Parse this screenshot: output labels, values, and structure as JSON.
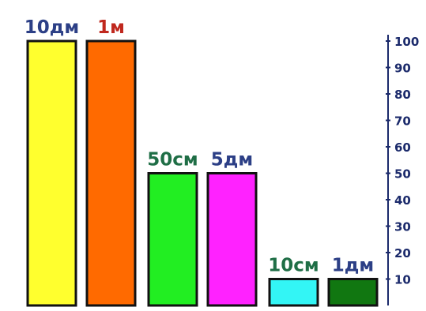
{
  "chart_data": {
    "type": "bar",
    "categories": [
      "10дм",
      "1м",
      "50см",
      "5дм",
      "10см",
      "1дм"
    ],
    "values": [
      100,
      100,
      50,
      50,
      10,
      10
    ],
    "bar_labels": [
      "10дм",
      "1м",
      "50см",
      "5дм",
      "10см",
      "1дм"
    ],
    "bar_colors": [
      "#ffff2e",
      "#ff6a00",
      "#22ee22",
      "#ff22ff",
      "#33f5f5",
      "#117711"
    ],
    "label_colors": [
      "#2c3f86",
      "#c0281e",
      "#1f6e46",
      "#2c3f86",
      "#1f6e46",
      "#2c3f86"
    ],
    "y_ticks": [
      10,
      20,
      30,
      40,
      50,
      60,
      70,
      80,
      90,
      100
    ],
    "ylim": [
      0,
      100
    ],
    "y_axis_position": "right",
    "y_axis_color": "#1b2a6b",
    "grid": false,
    "legend": "none",
    "title": "",
    "xlabel": "",
    "ylabel": ""
  }
}
